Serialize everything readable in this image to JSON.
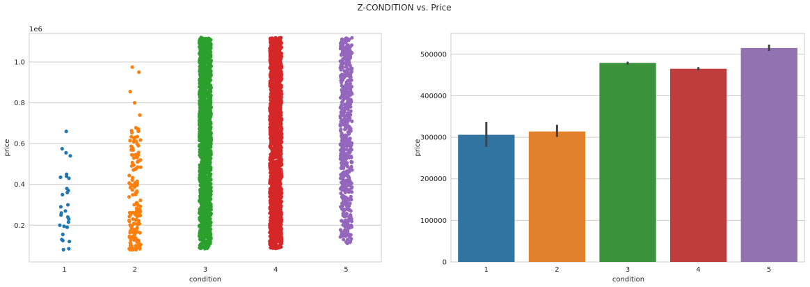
{
  "figure": {
    "title": "Z-CONDITION vs. Price"
  },
  "chart_data": [
    {
      "type": "scatter",
      "subtype": "strip",
      "categories": [
        "1",
        "2",
        "3",
        "4",
        "5"
      ],
      "xlabel": "condition",
      "ylabel": "price",
      "y_offset_label": "1e6",
      "ylim": [
        0.02,
        1.14
      ],
      "yticks": [
        "0.2",
        "0.4",
        "0.6",
        "0.8",
        "1.0"
      ],
      "ytick_values": [
        0.2,
        0.4,
        0.6,
        0.8,
        1.0
      ],
      "grid": "horizontal",
      "colors": [
        "#1f77b4",
        "#ff7f0e",
        "#2ca02c",
        "#d62728",
        "#9467bd"
      ],
      "series": [
        {
          "category": "1",
          "values": [
            0.66,
            0.575,
            0.555,
            0.54,
            0.45,
            0.44,
            0.435,
            0.43,
            0.38,
            0.37,
            0.36,
            0.35,
            0.3,
            0.29,
            0.27,
            0.26,
            0.25,
            0.24,
            0.23,
            0.215,
            0.2,
            0.195,
            0.19,
            0.155,
            0.13,
            0.125,
            0.12,
            0.085,
            0.08
          ]
        },
        {
          "category": "2",
          "range": [
            0.08,
            0.68
          ],
          "outliers": [
            0.975,
            0.95,
            0.855,
            0.8,
            0.74
          ]
        },
        {
          "category": "3",
          "range": [
            0.085,
            1.12
          ]
        },
        {
          "category": "4",
          "range": [
            0.085,
            1.12
          ]
        },
        {
          "category": "5",
          "range": [
            0.11,
            1.12
          ]
        }
      ]
    },
    {
      "type": "bar",
      "categories": [
        "1",
        "2",
        "3",
        "4",
        "5"
      ],
      "values": [
        306000,
        314000,
        479000,
        465000,
        515000
      ],
      "error_bars": [
        [
          277000,
          337000
        ],
        [
          301000,
          330000
        ],
        [
          475000,
          482000
        ],
        [
          461000,
          469000
        ],
        [
          508000,
          523000
        ]
      ],
      "xlabel": "condition",
      "ylabel": "price",
      "ylim": [
        0,
        550000
      ],
      "yticks": [
        "0",
        "100000",
        "200000",
        "300000",
        "400000",
        "500000"
      ],
      "ytick_values": [
        0,
        100000,
        200000,
        300000,
        400000,
        500000
      ],
      "grid": "horizontal",
      "colors": [
        "#3274a1",
        "#e1812c",
        "#3a923a",
        "#c03d3e",
        "#9372b2"
      ]
    }
  ]
}
